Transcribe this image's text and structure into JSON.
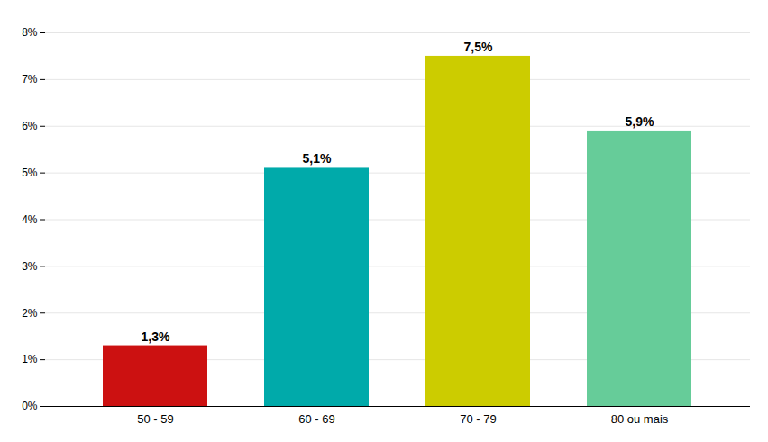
{
  "chart_data": {
    "type": "bar",
    "categories": [
      "50 - 59",
      "60 - 69",
      "70 - 79",
      "80 ou mais"
    ],
    "values": [
      1.3,
      5.1,
      7.5,
      5.9
    ],
    "value_labels": [
      "1,3%",
      "5,1%",
      "7,5%",
      "5,9%"
    ],
    "data_labels": true,
    "colors": [
      "#cc1111",
      "#00aaaa",
      "#cccc00",
      "#66cc99"
    ],
    "ylim": [
      0,
      8
    ],
    "yticks": [
      {
        "value": 0,
        "label": "0%"
      },
      {
        "value": 1,
        "label": "1%"
      },
      {
        "value": 2,
        "label": "2%"
      },
      {
        "value": 3,
        "label": "3%"
      },
      {
        "value": 4,
        "label": "4%"
      },
      {
        "value": 5,
        "label": "5%"
      },
      {
        "value": 6,
        "label": "6%"
      },
      {
        "value": 7,
        "label": "7%"
      },
      {
        "value": 8,
        "label": "8%"
      }
    ],
    "grid": true
  }
}
